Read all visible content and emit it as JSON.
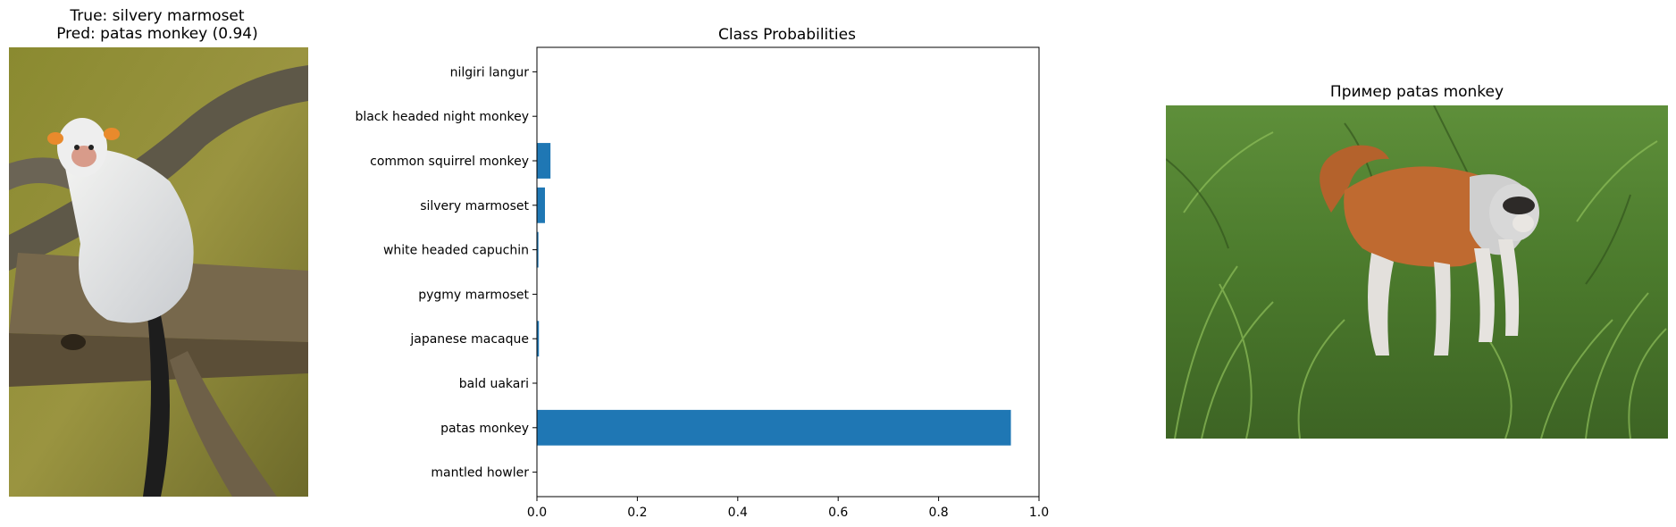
{
  "left_panel": {
    "title_true": "True: silvery marmoset",
    "title_pred": "Pred: patas monkey (0.94)",
    "image": "silvery-marmoset-photo"
  },
  "right_panel": {
    "title": "Пример patas monkey",
    "image": "patas-monkey-photo"
  },
  "chart_data": {
    "type": "bar",
    "orientation": "horizontal",
    "title": "Class Probabilities",
    "xlabel": "",
    "ylabel": "",
    "categories": [
      "mantled howler",
      "patas monkey",
      "bald uakari",
      "japanese macaque",
      "pygmy marmoset",
      "white headed capuchin",
      "silvery marmoset",
      "common squirrel monkey",
      "black headed night monkey",
      "nilgiri langur"
    ],
    "values": [
      0.0005,
      0.944,
      0.0005,
      0.004,
      0.0005,
      0.003,
      0.016,
      0.027,
      0.0005,
      0.0005
    ],
    "xlim": [
      0,
      1.0
    ],
    "xticks": [
      "0.0",
      "0.2",
      "0.4",
      "0.6",
      "0.8",
      "1.0"
    ],
    "bar_color": "#1f77b4",
    "grid": false
  }
}
